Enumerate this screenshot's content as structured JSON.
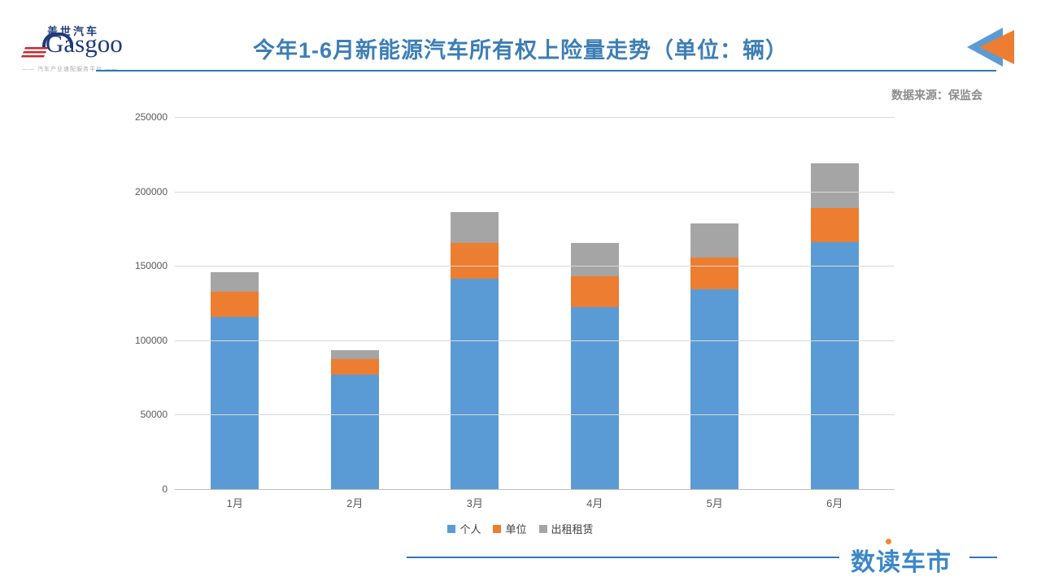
{
  "header": {
    "logo": {
      "cn": "盖世汽车",
      "en": "Gasgoo",
      "tagline": "—— 汽车产业速配服务平台 ——"
    },
    "title": "今年1-6月新能源汽车所有权上险量走势（单位：辆）",
    "source": "数据来源：保监会"
  },
  "footer": {
    "watermark": "数读车市"
  },
  "colors": {
    "title_blue": "#3d7eb5",
    "divider_blue": "#2e75b6",
    "series_personal": "#5b9bd5",
    "series_company": "#ed7d31",
    "series_rental": "#a5a5a5",
    "source_gray": "#8c8c8c",
    "watermark_blue": "#3d87c9",
    "watermark_dot_orange": "#f0882c",
    "logo_navy": "#1e3a7a",
    "logo_red": "#c62a2f",
    "gridline": "#d9d9d9"
  },
  "chart_data": {
    "type": "bar",
    "stacked": true,
    "title": "今年1-6月新能源汽车所有权上险量走势（单位：辆）",
    "categories": [
      "1月",
      "2月",
      "3月",
      "4月",
      "5月",
      "6月"
    ],
    "series": [
      {
        "name": "个人",
        "color": "#5b9bd5",
        "values": [
          116000,
          77000,
          141500,
          122500,
          134500,
          166000
        ]
      },
      {
        "name": "单位",
        "color": "#ed7d31",
        "values": [
          16500,
          10500,
          24000,
          20500,
          21000,
          23000
        ]
      },
      {
        "name": "出租租赁",
        "color": "#a5a5a5",
        "values": [
          13500,
          6000,
          20500,
          22500,
          23000,
          30000
        ]
      }
    ],
    "totals": [
      146000,
      93500,
      186000,
      165500,
      178500,
      219000
    ],
    "xlabel": "",
    "ylabel": "",
    "ylim": [
      0,
      250000
    ],
    "ytick_interval": 50000,
    "yticks": [
      "0",
      "50000",
      "100000",
      "150000",
      "200000",
      "250000"
    ],
    "grid": "horizontal",
    "legend_position": "bottom"
  }
}
